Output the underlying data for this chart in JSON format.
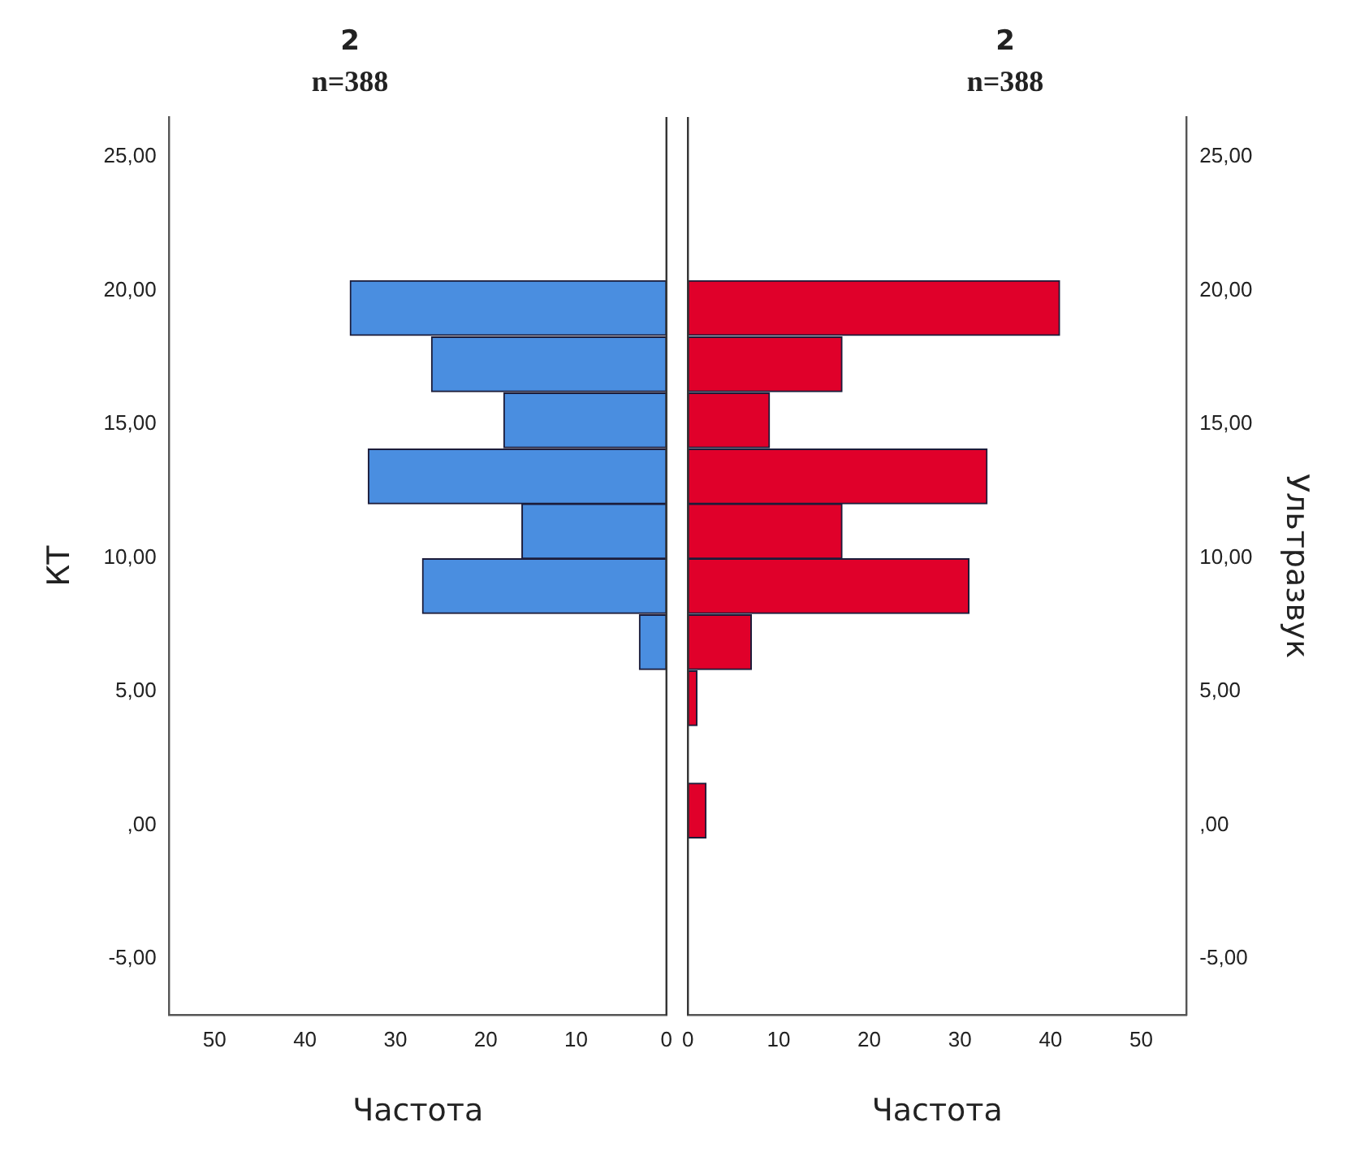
{
  "chart_data": [
    {
      "type": "histogram",
      "orientation": "horizontal",
      "title": "2",
      "subtitle": "n=388",
      "xlabel": "Частота",
      "ylabel": "КТ",
      "bins": [
        -0.5,
        1.6,
        3.7,
        5.8,
        7.9,
        10.0,
        12.0,
        14.1,
        16.2,
        18.3,
        20.4
      ],
      "values": [
        0,
        0,
        0,
        3,
        27,
        16,
        33,
        18,
        26,
        35
      ],
      "color": "#4a8ee0",
      "xlim": [
        55,
        0
      ],
      "xticks": [
        50,
        40,
        30,
        20,
        10,
        0
      ],
      "ylim": [
        -7.1,
        26.5
      ],
      "yticks": [
        {
          "value": -5,
          "label": "-5,00"
        },
        {
          "value": 0,
          "label": ",00"
        },
        {
          "value": 5,
          "label": "5,00"
        },
        {
          "value": 10,
          "label": "10,00"
        },
        {
          "value": 15,
          "label": "15,00"
        },
        {
          "value": 20,
          "label": "20,00"
        },
        {
          "value": 25,
          "label": "25,00"
        }
      ],
      "grid": false,
      "legend": false
    },
    {
      "type": "histogram",
      "orientation": "horizontal",
      "title": "2",
      "subtitle": "n=388",
      "xlabel": "Частота",
      "ylabel": "Ультразвук",
      "bins": [
        -0.5,
        1.6,
        3.7,
        5.8,
        7.9,
        10.0,
        12.0,
        14.1,
        16.2,
        18.3,
        20.4
      ],
      "values": [
        2,
        0,
        1,
        7,
        31,
        17,
        33,
        9,
        17,
        41
      ],
      "color": "#e0002a",
      "xlim": [
        0,
        55
      ],
      "xticks": [
        0,
        10,
        20,
        30,
        40,
        50
      ],
      "ylim": [
        -7.1,
        26.5
      ],
      "yticks": [
        {
          "value": -5,
          "label": "-5,00"
        },
        {
          "value": 0,
          "label": ",00"
        },
        {
          "value": 5,
          "label": "5,00"
        },
        {
          "value": 10,
          "label": "10,00"
        },
        {
          "value": 15,
          "label": "15,00"
        },
        {
          "value": 20,
          "label": "20,00"
        },
        {
          "value": 25,
          "label": "25,00"
        }
      ],
      "grid": false,
      "legend": false
    }
  ]
}
